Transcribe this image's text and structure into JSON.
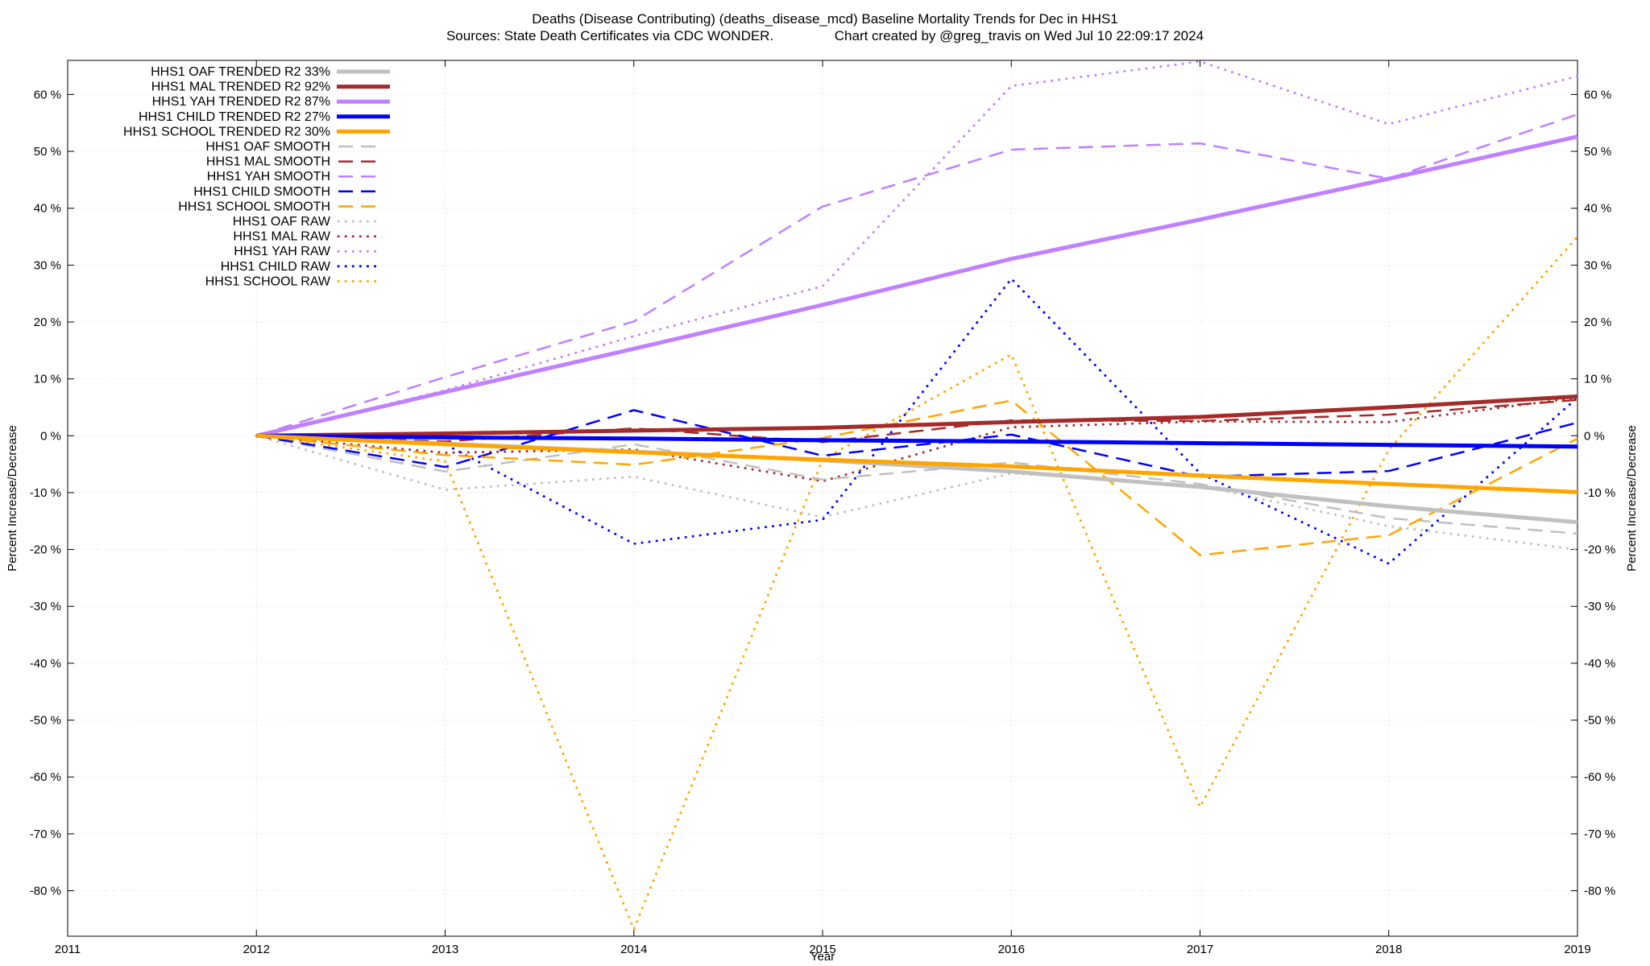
{
  "chart_data": {
    "type": "line",
    "title": "Deaths (Disease Contributing) (deaths_disease_mcd)  Baseline Mortality Trends for Dec in HHS1",
    "subtitle": "Sources: State Death Certificates via CDC WONDER.                Chart created by @greg_travis on Wed Jul 10 22:09:17 2024",
    "xlabel": "Year",
    "ylabel": "Percent Increase/Decrease",
    "y2label": "Percent Increase/Decrease",
    "xlim": [
      2011,
      2019
    ],
    "ylim": [
      -88,
      66
    ],
    "xticks": [
      2011,
      2012,
      2013,
      2014,
      2015,
      2016,
      2017,
      2018,
      2019
    ],
    "yticks": [
      60,
      50,
      40,
      30,
      20,
      10,
      0,
      -10,
      -20,
      -30,
      -40,
      -50,
      -60,
      -70,
      -80
    ],
    "ytick_suffix": " %",
    "grid": true,
    "legend_position": "top-left",
    "series": [
      {
        "name": "HHS1 OAF TRENDED R2  33%",
        "color": "#c0c0c0",
        "style": "solid",
        "x": [
          2012,
          2013,
          2014,
          2015,
          2016,
          2017,
          2018,
          2019
        ],
        "y": [
          0,
          -1.4,
          -2.8,
          -4.3,
          -6.3,
          -9.0,
          -12.4,
          -15.2
        ]
      },
      {
        "name": "HHS1 MAL TRENDED R2  92%",
        "color": "#a52a2a",
        "style": "solid",
        "x": [
          2012,
          2013,
          2014,
          2015,
          2016,
          2017,
          2018,
          2019
        ],
        "y": [
          0,
          0.4,
          0.9,
          1.4,
          2.4,
          3.3,
          5.0,
          6.9
        ]
      },
      {
        "name": "HHS1 YAH TRENDED R2  87%",
        "color": "#c080ff",
        "style": "solid",
        "x": [
          2012,
          2013,
          2014,
          2015,
          2016,
          2017,
          2018,
          2019
        ],
        "y": [
          0,
          7.7,
          15.3,
          23.0,
          31.1,
          38.0,
          45.2,
          52.6
        ]
      },
      {
        "name": "HHS1 CHILD TRENDED R2  27%",
        "color": "#0000ff",
        "style": "solid",
        "x": [
          2012,
          2013,
          2014,
          2015,
          2016,
          2017,
          2018,
          2019
        ],
        "y": [
          0,
          -0.3,
          -0.5,
          -0.8,
          -1.0,
          -1.3,
          -1.6,
          -1.9
        ]
      },
      {
        "name": "HHS1 SCHOOL TRENDED R2  30%",
        "color": "#ffa500",
        "style": "solid",
        "x": [
          2012,
          2013,
          2014,
          2015,
          2016,
          2017,
          2018,
          2019
        ],
        "y": [
          0,
          -1.5,
          -2.9,
          -4.2,
          -5.4,
          -7.0,
          -8.5,
          -9.9
        ]
      },
      {
        "name": "HHS1 OAF SMOOTH",
        "color": "#c0c0c0",
        "style": "dash",
        "x": [
          2012,
          2013,
          2014,
          2015,
          2016,
          2017,
          2018,
          2019
        ],
        "y": [
          0,
          -6.3,
          -1.5,
          -7.7,
          -4.7,
          -8.5,
          -14.5,
          -17.2
        ]
      },
      {
        "name": "HHS1 MAL SMOOTH",
        "color": "#a52a2a",
        "style": "dash",
        "x": [
          2012,
          2013,
          2014,
          2015,
          2016,
          2017,
          2018,
          2019
        ],
        "y": [
          0,
          -1.0,
          1.3,
          -1.1,
          2.7,
          2.6,
          3.7,
          6.3
        ]
      },
      {
        "name": "HHS1 YAH SMOOTH",
        "color": "#c080ff",
        "style": "dash",
        "x": [
          2012,
          2013,
          2014,
          2015,
          2016,
          2017,
          2018,
          2019
        ],
        "y": [
          0,
          10.3,
          20.1,
          40.3,
          50.3,
          51.4,
          45.2,
          56.5
        ]
      },
      {
        "name": "HHS1 CHILD SMOOTH",
        "color": "#0000ff",
        "style": "dash",
        "x": [
          2012,
          2013,
          2014,
          2015,
          2016,
          2017,
          2018,
          2019
        ],
        "y": [
          0,
          -5.5,
          4.5,
          -3.5,
          0.2,
          -7.2,
          -6.2,
          2.3
        ]
      },
      {
        "name": "HHS1 SCHOOL SMOOTH",
        "color": "#ffa500",
        "style": "dash",
        "x": [
          2012,
          2013,
          2014,
          2015,
          2016,
          2017,
          2018,
          2019
        ],
        "y": [
          0,
          -3.4,
          -5.1,
          -0.4,
          6.2,
          -21.0,
          -17.5,
          -0.5
        ]
      },
      {
        "name": "HHS1 OAF RAW",
        "color": "#c0c0c0",
        "style": "dot",
        "x": [
          2012,
          2013,
          2014,
          2015,
          2016,
          2017,
          2018,
          2019
        ],
        "y": [
          0,
          -9.5,
          -7.2,
          -14.3,
          -6.6,
          -8.8,
          -15.9,
          -20.0
        ]
      },
      {
        "name": "HHS1 MAL RAW",
        "color": "#a52a2a",
        "style": "dot",
        "x": [
          2012,
          2013,
          2014,
          2015,
          2016,
          2017,
          2018,
          2019
        ],
        "y": [
          0,
          -3.0,
          -2.4,
          -8.0,
          1.5,
          2.5,
          2.4,
          6.7
        ]
      },
      {
        "name": "HHS1 YAH RAW",
        "color": "#c080ff",
        "style": "dot",
        "x": [
          2012,
          2013,
          2014,
          2015,
          2016,
          2017,
          2018,
          2019
        ],
        "y": [
          0,
          8.0,
          17.5,
          26.3,
          61.5,
          65.8,
          54.8,
          63.2
        ]
      },
      {
        "name": "HHS1 CHILD RAW",
        "color": "#0000ff",
        "style": "dot",
        "x": [
          2012,
          2013,
          2014,
          2015,
          2016,
          2017,
          2018,
          2019
        ],
        "y": [
          0,
          -1.5,
          -19.0,
          -14.8,
          27.6,
          -6.6,
          -22.5,
          6.7
        ]
      },
      {
        "name": "HHS1 SCHOOL RAW",
        "color": "#ffa500",
        "style": "dot",
        "x": [
          2012,
          2013,
          2014,
          2015,
          2016,
          2017,
          2018,
          2019
        ],
        "y": [
          0,
          -4.5,
          -86.8,
          -4.2,
          14.3,
          -65.3,
          -2.5,
          35.0
        ]
      }
    ]
  }
}
